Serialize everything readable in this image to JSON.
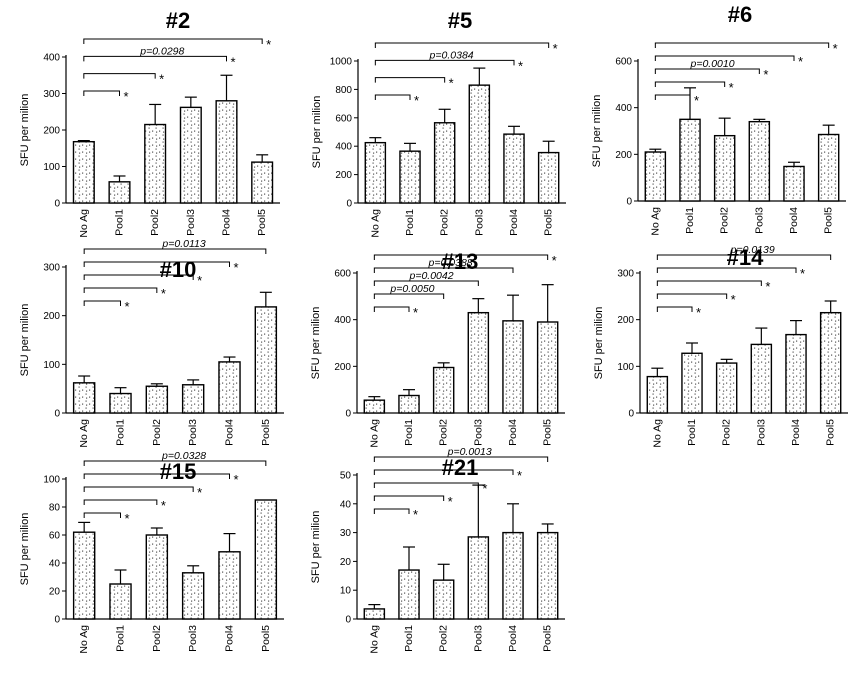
{
  "chart_data": [
    {
      "type": "bar",
      "title": "#2",
      "ylabel": "SFU per milion",
      "categories": [
        "No Ag",
        "Pool1",
        "Pool2",
        "Pool3",
        "Pool4",
        "Pool5"
      ],
      "values": [
        168,
        58,
        215,
        262,
        280,
        112
      ],
      "errors": [
        3,
        16,
        55,
        28,
        70,
        20
      ],
      "ylim": [
        0,
        400
      ],
      "yticks": [
        0,
        100,
        200,
        300,
        400
      ],
      "comparisons": [
        {
          "from": "No Ag",
          "to": "Pool1",
          "label": "*"
        },
        {
          "from": "No Ag",
          "to": "Pool2",
          "label": "*"
        },
        {
          "from": "No Ag",
          "to": "Pool4",
          "label": "*",
          "p": "p=0.0298"
        },
        {
          "from": "No Ag",
          "to": "Pool5",
          "label": "*"
        }
      ]
    },
    {
      "type": "bar",
      "title": "#5",
      "ylabel": "SFU per milion",
      "categories": [
        "No Ag",
        "Pool1",
        "Pool2",
        "Pool3",
        "Pool4",
        "Pool5"
      ],
      "values": [
        425,
        365,
        565,
        830,
        485,
        355
      ],
      "errors": [
        35,
        55,
        95,
        120,
        55,
        80
      ],
      "ylim": [
        0,
        1000
      ],
      "yticks": [
        0,
        200,
        400,
        600,
        800,
        1000
      ],
      "comparisons": [
        {
          "from": "No Ag",
          "to": "Pool1",
          "label": "*"
        },
        {
          "from": "No Ag",
          "to": "Pool2",
          "label": "*"
        },
        {
          "from": "No Ag",
          "to": "Pool4",
          "label": "*",
          "p": "p=0.0384"
        },
        {
          "from": "No Ag",
          "to": "Pool5",
          "label": "*"
        }
      ]
    },
    {
      "type": "bar",
      "title": "#6",
      "ylabel": "SFU per milion",
      "categories": [
        "No Ag",
        "Pool1",
        "Pool2",
        "Pool3",
        "Pool4",
        "Pool5"
      ],
      "values": [
        210,
        350,
        280,
        340,
        148,
        285
      ],
      "errors": [
        12,
        135,
        75,
        10,
        18,
        40
      ],
      "ylim": [
        0,
        600
      ],
      "yticks": [
        0,
        200,
        400,
        600
      ],
      "comparisons": [
        {
          "from": "No Ag",
          "to": "Pool1",
          "label": "*"
        },
        {
          "from": "No Ag",
          "to": "Pool2",
          "label": "*"
        },
        {
          "from": "No Ag",
          "to": "Pool3",
          "label": "*",
          "p": "p=0.0010"
        },
        {
          "from": "No Ag",
          "to": "Pool4",
          "label": "*"
        },
        {
          "from": "No Ag",
          "to": "Pool5",
          "label": "*"
        }
      ]
    },
    {
      "type": "bar",
      "title": "#10",
      "ylabel": "SFU per milion",
      "categories": [
        "No Ag",
        "Pool1",
        "Pool2",
        "Pool3",
        "Pool4",
        "Pool5"
      ],
      "values": [
        62,
        40,
        55,
        58,
        105,
        218
      ],
      "errors": [
        14,
        12,
        5,
        10,
        10,
        30
      ],
      "ylim": [
        0,
        300
      ],
      "yticks": [
        0,
        100,
        200,
        300
      ],
      "comparisons": [
        {
          "from": "No Ag",
          "to": "Pool1",
          "label": "*"
        },
        {
          "from": "No Ag",
          "to": "Pool2",
          "label": "*"
        },
        {
          "from": "No Ag",
          "to": "Pool3",
          "label": "*"
        },
        {
          "from": "No Ag",
          "to": "Pool4",
          "label": "*"
        },
        {
          "from": "No Ag",
          "to": "Pool5",
          "label": "",
          "p": "p=0.0113"
        }
      ]
    },
    {
      "type": "bar",
      "title": "#13",
      "ylabel": "SFU per milion",
      "categories": [
        "No Ag",
        "Pool1",
        "Pool2",
        "Pool3",
        "Pool4",
        "Pool5"
      ],
      "values": [
        55,
        75,
        195,
        430,
        395,
        390
      ],
      "errors": [
        15,
        25,
        20,
        60,
        110,
        160
      ],
      "ylim": [
        0,
        600
      ],
      "yticks": [
        0,
        200,
        400,
        600
      ],
      "comparisons": [
        {
          "from": "No Ag",
          "to": "Pool1",
          "label": "*"
        },
        {
          "from": "No Ag",
          "to": "Pool2",
          "label": "",
          "p": "p=0.0050"
        },
        {
          "from": "No Ag",
          "to": "Pool3",
          "label": "",
          "p": "p=0.0042"
        },
        {
          "from": "No Ag",
          "to": "Pool4",
          "label": "",
          "p": "p=0.0388"
        },
        {
          "from": "No Ag",
          "to": "Pool5",
          "label": "*"
        }
      ]
    },
    {
      "type": "bar",
      "title": "#14",
      "ylabel": "SFU per milion",
      "categories": [
        "No Ag",
        "Pool1",
        "Pool2",
        "Pool3",
        "Pool4",
        "Pool5"
      ],
      "values": [
        78,
        128,
        107,
        147,
        168,
        215
      ],
      "errors": [
        18,
        22,
        8,
        35,
        30,
        25
      ],
      "ylim": [
        0,
        300
      ],
      "yticks": [
        0,
        100,
        200,
        300
      ],
      "comparisons": [
        {
          "from": "No Ag",
          "to": "Pool1",
          "label": "*"
        },
        {
          "from": "No Ag",
          "to": "Pool2",
          "label": "*"
        },
        {
          "from": "No Ag",
          "to": "Pool3",
          "label": "*"
        },
        {
          "from": "No Ag",
          "to": "Pool4",
          "label": "*"
        },
        {
          "from": "No Ag",
          "to": "Pool5",
          "label": "",
          "p": "p=0.0139"
        }
      ]
    },
    {
      "type": "bar",
      "title": "#15",
      "ylabel": "SFU per milion",
      "categories": [
        "No Ag",
        "Pool1",
        "Pool2",
        "Pool3",
        "Pool4",
        "Pool5"
      ],
      "values": [
        62,
        25,
        60,
        33,
        48,
        85
      ],
      "errors": [
        7,
        10,
        5,
        5,
        13,
        0
      ],
      "ylim": [
        0,
        100
      ],
      "yticks": [
        0,
        20,
        40,
        60,
        80,
        100
      ],
      "comparisons": [
        {
          "from": "No Ag",
          "to": "Pool1",
          "label": "*"
        },
        {
          "from": "No Ag",
          "to": "Pool2",
          "label": "*"
        },
        {
          "from": "No Ag",
          "to": "Pool3",
          "label": "*"
        },
        {
          "from": "No Ag",
          "to": "Pool4",
          "label": "*"
        },
        {
          "from": "No Ag",
          "to": "Pool5",
          "label": "",
          "p": "p=0.0328"
        }
      ]
    },
    {
      "type": "bar",
      "title": "#21",
      "ylabel": "SFU per milion",
      "categories": [
        "No Ag",
        "Pool1",
        "Pool2",
        "Pool3",
        "Pool4",
        "Pool5"
      ],
      "values": [
        3.5,
        17,
        13.5,
        28.5,
        30,
        30
      ],
      "errors": [
        1.5,
        8,
        5.5,
        18,
        10,
        3
      ],
      "ylim": [
        0,
        50
      ],
      "yticks": [
        0,
        10,
        20,
        30,
        40,
        50
      ],
      "comparisons": [
        {
          "from": "No Ag",
          "to": "Pool1",
          "label": "*"
        },
        {
          "from": "No Ag",
          "to": "Pool2",
          "label": "*"
        },
        {
          "from": "No Ag",
          "to": "Pool3",
          "label": "*"
        },
        {
          "from": "No Ag",
          "to": "Pool4",
          "label": "*"
        },
        {
          "from": "No Ag",
          "to": "Pool5",
          "label": "",
          "p": "p=0.0013"
        }
      ]
    }
  ]
}
